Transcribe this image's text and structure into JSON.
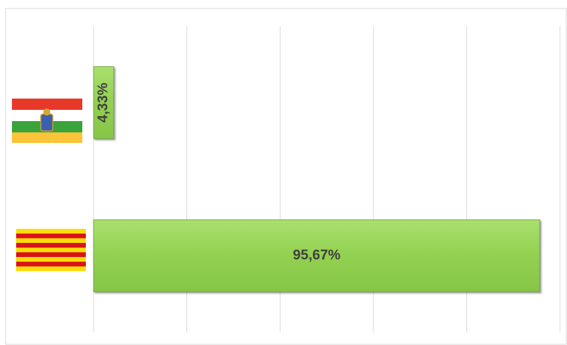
{
  "chart_data": {
    "type": "bar",
    "orientation": "horizontal",
    "categories": [
      null,
      null
    ],
    "values": [
      4.33,
      95.67
    ],
    "value_labels": [
      "4,33%",
      "95,67%"
    ],
    "color": "#92d050",
    "xlim": [
      0,
      100
    ],
    "xticks": [
      0,
      20,
      40,
      60,
      80,
      100
    ],
    "grid": true
  }
}
